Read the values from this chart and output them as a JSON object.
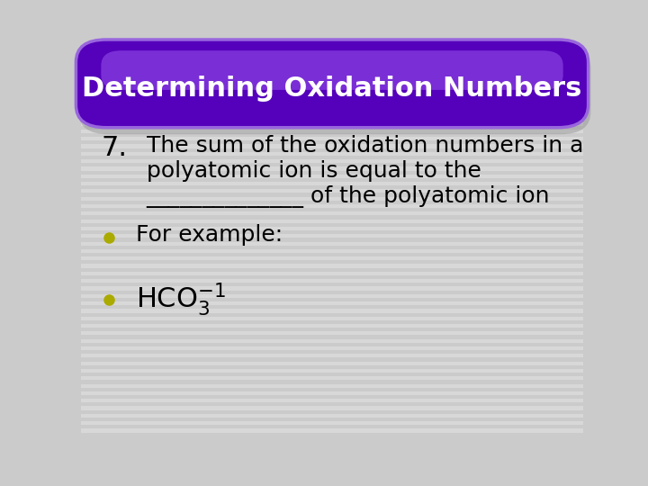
{
  "title": "Determining Oxidation Numbers",
  "title_bg_color": "#5500BB",
  "title_edge_color": "#7733CC",
  "title_gloss_color": "#7722EE",
  "title_text_color": "#FFFFFF",
  "bg_color": "#CBCBCB",
  "stripe_color": "#D8D8D8",
  "body_text_color": "#000000",
  "bullet_color": "#AAAA00",
  "line7_part1": "The sum of the oxidation numbers in a",
  "line7_part2": "polyatomic ion is equal to the",
  "line7_part3": "______________ of the polyatomic ion",
  "bullet1": "For example:",
  "bullet2_hco": "HCO",
  "number_prefix": "7.",
  "font_size_title": 22,
  "font_size_body": 18,
  "font_size_number": 22,
  "font_size_hco": 22
}
